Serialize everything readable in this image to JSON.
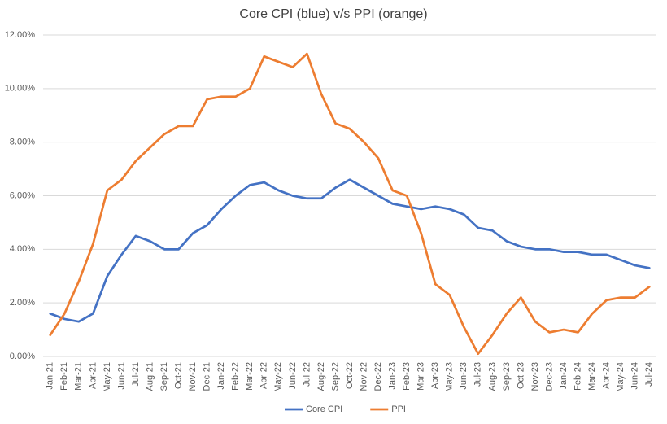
{
  "chart_data": {
    "type": "line",
    "title": "Core CPI (blue) v/s PPI (orange)",
    "categories": [
      "Jan-21",
      "Feb-21",
      "Mar-21",
      "Apr-21",
      "May-21",
      "Jun-21",
      "Jul-21",
      "Aug-21",
      "Sep-21",
      "Oct-21",
      "Nov-21",
      "Dec-21",
      "Jan-22",
      "Feb-22",
      "Mar-22",
      "Apr-22",
      "May-22",
      "Jun-22",
      "Jul-22",
      "Aug-22",
      "Sep-22",
      "Oct-22",
      "Nov-22",
      "Dec-22",
      "Jan-23",
      "Feb-23",
      "Mar-23",
      "Apr-23",
      "May-23",
      "Jun-23",
      "Jul-23",
      "Aug-23",
      "Sep-23",
      "Oct-23",
      "Nov-23",
      "Dec-23",
      "Jan-24",
      "Feb-24",
      "Mar-24",
      "Apr-24",
      "May-24",
      "Jun-24",
      "Jul-24"
    ],
    "series": [
      {
        "name": "Core CPI",
        "color": "#4472c4",
        "values": [
          1.6,
          1.4,
          1.3,
          1.6,
          3.0,
          3.8,
          4.5,
          4.3,
          4.0,
          4.0,
          4.6,
          4.9,
          5.5,
          6.0,
          6.4,
          6.5,
          6.2,
          6.0,
          5.9,
          5.9,
          6.3,
          6.6,
          6.3,
          6.0,
          5.7,
          5.6,
          5.5,
          5.6,
          5.5,
          5.3,
          4.8,
          4.7,
          4.3,
          4.1,
          4.0,
          4.0,
          3.9,
          3.9,
          3.8,
          3.8,
          3.6,
          3.4,
          3.3
        ]
      },
      {
        "name": "PPI",
        "color": "#ed7d31",
        "values": [
          0.8,
          1.6,
          2.8,
          4.2,
          6.2,
          6.6,
          7.3,
          7.8,
          8.3,
          8.6,
          8.6,
          9.6,
          9.7,
          9.7,
          10.0,
          11.2,
          11.0,
          10.8,
          11.3,
          9.8,
          8.7,
          8.5,
          8.0,
          7.4,
          6.2,
          6.0,
          4.6,
          2.7,
          2.3,
          1.1,
          0.1,
          0.8,
          1.6,
          2.2,
          1.3,
          0.9,
          1.0,
          0.9,
          1.6,
          2.1,
          2.2,
          2.2,
          2.6
        ]
      }
    ],
    "ylim": [
      0,
      12
    ],
    "yticks": [
      {
        "value": 0,
        "label": "0.00%"
      },
      {
        "value": 2,
        "label": "2.00%"
      },
      {
        "value": 4,
        "label": "4.00%"
      },
      {
        "value": 6,
        "label": "6.00%"
      },
      {
        "value": 8,
        "label": "8.00%"
      },
      {
        "value": 10,
        "label": "10.00%"
      },
      {
        "value": 12,
        "label": "12.00%"
      }
    ],
    "grid": true,
    "legend": "bottom"
  }
}
